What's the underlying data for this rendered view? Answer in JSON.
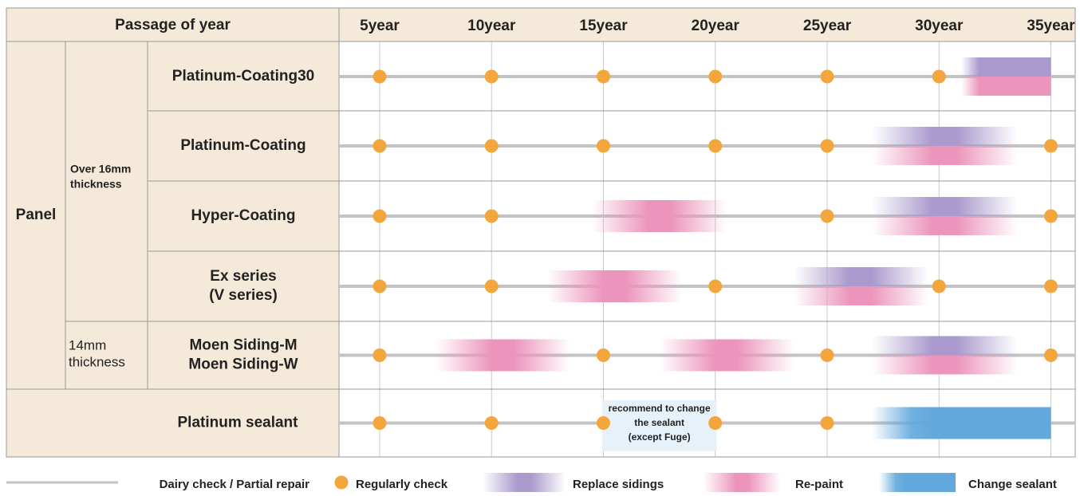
{
  "chart_data": {
    "type": "table",
    "header": {
      "corner": "Passage of year",
      "years": [
        "5year",
        "10year",
        "15year",
        "20year",
        "25year",
        "30year",
        "35year"
      ]
    },
    "groups": {
      "panel": "Panel",
      "over16": [
        "Over 16mm",
        "thickness"
      ],
      "mm14": [
        "14mm",
        "thickness"
      ]
    },
    "rows": [
      {
        "label": [
          "Platinum-Coating30"
        ],
        "checks": [
          5,
          10,
          15,
          20,
          25,
          30
        ],
        "events": [
          {
            "type": "replace",
            "from": 31,
            "to": 35
          }
        ]
      },
      {
        "label": [
          "Platinum-Coating"
        ],
        "checks": [
          5,
          10,
          15,
          20,
          25,
          35
        ],
        "events": [
          {
            "type": "replace",
            "from": 27,
            "to": 33.5
          }
        ]
      },
      {
        "label": [
          "Hyper-Coating"
        ],
        "checks": [
          5,
          10,
          25,
          35
        ],
        "events": [
          {
            "type": "repaint",
            "from": 14.5,
            "to": 20.5
          },
          {
            "type": "replace",
            "from": 27,
            "to": 33.5
          }
        ]
      },
      {
        "label": [
          "Ex series",
          "(V series)"
        ],
        "checks": [
          5,
          10,
          20,
          30,
          35
        ],
        "events": [
          {
            "type": "repaint",
            "from": 12.5,
            "to": 18.5
          },
          {
            "type": "replace",
            "from": 23.5,
            "to": 29.5
          }
        ]
      },
      {
        "label": [
          "Moen Siding-M",
          "Moen Siding-W"
        ],
        "checks": [
          5,
          15,
          25,
          35
        ],
        "events": [
          {
            "type": "repaint",
            "from": 7.5,
            "to": 13.5
          },
          {
            "type": "repaint",
            "from": 17.5,
            "to": 23.5
          },
          {
            "type": "replace",
            "from": 27,
            "to": 33.5
          }
        ]
      },
      {
        "label": [
          "Platinum sealant"
        ],
        "checks": [
          5,
          10,
          15,
          20,
          25
        ],
        "events": [
          {
            "type": "sealant",
            "from": 27,
            "to": 35
          }
        ],
        "note": {
          "lines": [
            "recommend to change",
            "the sealant",
            "(except Fuge)"
          ],
          "at": 17.5
        }
      }
    ],
    "legend": [
      {
        "type": "line",
        "label": "Dairy check / Partial repair"
      },
      {
        "type": "check",
        "label": "Regularly check"
      },
      {
        "type": "replace",
        "label": "Replace sidings"
      },
      {
        "type": "repaint",
        "label": "Re-paint"
      },
      {
        "type": "sealant",
        "label": "Change sealant"
      }
    ],
    "colors": {
      "header_bg": "#f5ead9",
      "label_bg": "#f5ead9",
      "border": "#999999",
      "grid": "#c9c9c9",
      "timeline": "#c3c3c3",
      "check": "#f3a63b",
      "replace": "#a999cc",
      "repaint": "#ec94bb",
      "sealant": "#61a8dc",
      "note_bg": "#e6f1f9"
    }
  }
}
